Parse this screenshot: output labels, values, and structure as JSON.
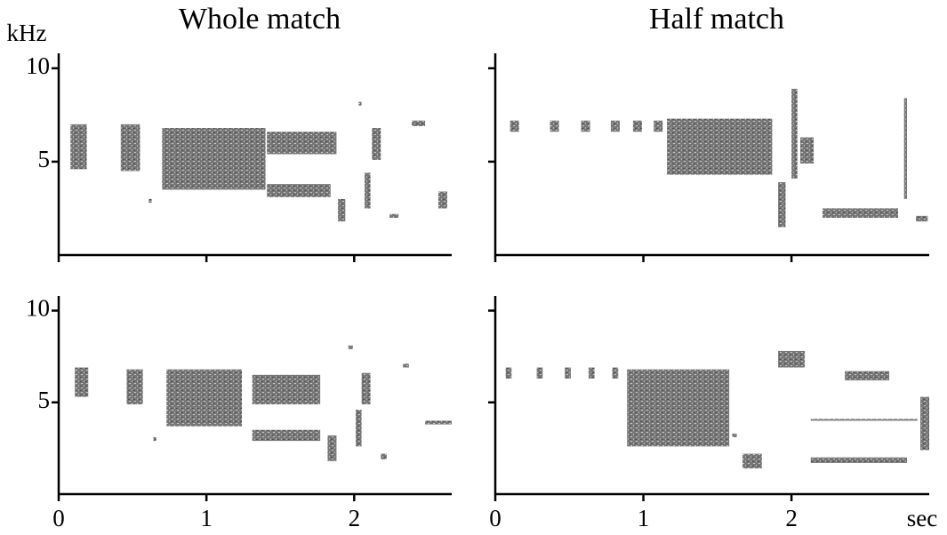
{
  "chart_data": [
    {
      "type": "spectrogram",
      "title": "Whole match",
      "ylabel": "kHz",
      "xlim": [
        0,
        2.66
      ],
      "ylim": [
        0,
        10.8
      ],
      "xticks": [
        0,
        1,
        2
      ],
      "yticks": [
        5,
        10
      ],
      "show_xtick_labels": false,
      "show_ytick_labels": true,
      "segments": {
        "start": [
          0.08,
          0.42,
          0.61,
          0.7,
          1.41,
          1.41,
          1.89,
          2.03,
          2.07,
          2.12,
          2.24,
          2.39,
          2.57
        ],
        "end": [
          0.19,
          0.55,
          0.63,
          1.4,
          1.88,
          1.84,
          1.94,
          2.05,
          2.11,
          2.18,
          2.3,
          2.48,
          2.63
        ],
        "low": [
          4.6,
          4.5,
          2.8,
          3.5,
          5.4,
          3.1,
          1.8,
          8.0,
          2.5,
          5.1,
          2.0,
          6.9,
          2.5
        ],
        "high": [
          7.0,
          7.0,
          3.0,
          6.8,
          6.6,
          3.8,
          3.0,
          8.2,
          4.4,
          6.8,
          2.2,
          7.2,
          3.4
        ]
      }
    },
    {
      "type": "spectrogram",
      "title": "Half match",
      "xlim": [
        0,
        2.93
      ],
      "ylim": [
        0,
        10.8
      ],
      "xticks": [
        0,
        1,
        2
      ],
      "yticks": [
        5,
        10
      ],
      "show_xtick_labels": false,
      "show_ytick_labels": false,
      "segments": {
        "start": [
          0.1,
          0.37,
          0.58,
          0.78,
          0.93,
          1.07,
          1.16,
          1.91,
          2.0,
          2.06,
          2.21,
          2.76,
          2.84
        ],
        "end": [
          0.16,
          0.43,
          0.64,
          0.84,
          0.99,
          1.13,
          1.87,
          1.96,
          2.04,
          2.15,
          2.72,
          2.78,
          2.92
        ],
        "low": [
          6.6,
          6.6,
          6.6,
          6.6,
          6.6,
          6.6,
          4.3,
          1.5,
          4.1,
          4.9,
          2.0,
          3.0,
          1.8
        ],
        "high": [
          7.2,
          7.2,
          7.2,
          7.2,
          7.2,
          7.2,
          7.3,
          3.9,
          8.9,
          6.3,
          2.5,
          8.4,
          2.1
        ]
      }
    },
    {
      "type": "spectrogram",
      "xlim": [
        0,
        2.66
      ],
      "ylim": [
        0,
        10.8
      ],
      "xticks": [
        0,
        1,
        2
      ],
      "yticks": [
        5,
        10
      ],
      "show_xtick_labels": true,
      "show_ytick_labels": true,
      "segments": {
        "start": [
          0.11,
          0.46,
          0.64,
          0.73,
          1.31,
          1.31,
          1.82,
          1.96,
          2.01,
          2.05,
          2.18,
          2.33,
          2.48
        ],
        "end": [
          0.2,
          0.57,
          0.66,
          1.24,
          1.77,
          1.77,
          1.88,
          1.99,
          2.05,
          2.11,
          2.22,
          2.37,
          2.66
        ],
        "low": [
          5.3,
          4.9,
          2.9,
          3.7,
          4.9,
          2.9,
          1.8,
          7.9,
          2.6,
          4.9,
          1.9,
          6.9,
          3.8
        ],
        "high": [
          6.9,
          6.8,
          3.1,
          6.8,
          6.5,
          3.5,
          3.2,
          8.1,
          4.6,
          6.6,
          2.2,
          7.1,
          4.0
        ]
      }
    },
    {
      "type": "spectrogram",
      "xlabel": "sec",
      "xlim": [
        0,
        2.93
      ],
      "ylim": [
        0,
        10.8
      ],
      "xticks": [
        0,
        1,
        2
      ],
      "yticks": [
        5,
        10
      ],
      "show_xtick_labels": true,
      "show_ytick_labels": false,
      "segments": {
        "start": [
          0.07,
          0.28,
          0.47,
          0.63,
          0.79,
          0.89,
          1.6,
          1.67,
          1.91,
          2.13,
          2.13,
          2.36,
          2.87
        ],
        "end": [
          0.11,
          0.32,
          0.51,
          0.67,
          0.83,
          1.58,
          1.63,
          1.8,
          2.09,
          2.78,
          2.85,
          2.66,
          2.93
        ],
        "low": [
          6.3,
          6.3,
          6.3,
          6.3,
          6.3,
          2.6,
          3.1,
          1.4,
          6.9,
          1.7,
          4.0,
          6.2,
          2.4
        ],
        "high": [
          6.9,
          6.9,
          6.9,
          6.9,
          6.9,
          6.8,
          3.3,
          2.2,
          7.8,
          2.0,
          4.1,
          6.7,
          5.3
        ]
      }
    }
  ]
}
